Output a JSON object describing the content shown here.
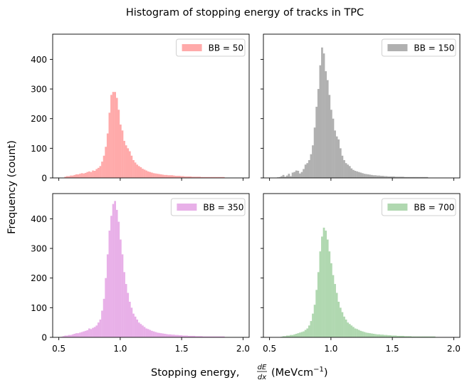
{
  "figure": {
    "suptitle": "Histogram of stopping energy of tracks in TPC",
    "ylabel": "Frequency (count)",
    "xlabel_prefix": "Stopping energy, ",
    "xlabel_frac_num": "dE",
    "xlabel_frac_den": "dx",
    "xlabel_units": "(MeVcm",
    "xlabel_units_sup": "−1",
    "xlabel_units_close": ")"
  },
  "chart_data": [
    {
      "type": "bar",
      "legend": "BB = 50",
      "color": "#ffaaaa",
      "bin_start": 0.5,
      "bin_width": 0.015,
      "xlim": [
        0.45,
        2.05
      ],
      "ylim": [
        0,
        485
      ],
      "xticks": [
        0.5,
        1.0,
        1.5,
        2.0
      ],
      "xtick_labels": [
        "0.5",
        "1.0",
        "1.5",
        "2.0"
      ],
      "yticks": [
        0,
        100,
        200,
        300,
        400
      ],
      "ytick_labels": [
        "0",
        "100",
        "200",
        "300",
        "400"
      ],
      "values": [
        0,
        0,
        0,
        4,
        6,
        6,
        8,
        8,
        10,
        12,
        12,
        14,
        16,
        15,
        17,
        20,
        22,
        20,
        25,
        24,
        30,
        34,
        40,
        55,
        75,
        105,
        150,
        220,
        280,
        290,
        290,
        270,
        230,
        180,
        160,
        125,
        110,
        100,
        90,
        75,
        60,
        52,
        45,
        40,
        36,
        31,
        28,
        25,
        22,
        20,
        18,
        16,
        15,
        14,
        13,
        12,
        11,
        10,
        10,
        9,
        9,
        9,
        8,
        7,
        7,
        7,
        6,
        6,
        5,
        5,
        5,
        5,
        4,
        4,
        4,
        4,
        4,
        3,
        3,
        3,
        3,
        3,
        3,
        3,
        3,
        3,
        3,
        3,
        3,
        3
      ]
    },
    {
      "type": "bar",
      "legend": "BB = 150",
      "color": "#b0b0b0",
      "bin_start": 0.5,
      "bin_width": 0.015,
      "xlim": [
        0.45,
        2.05
      ],
      "ylim": [
        0,
        485
      ],
      "xticks": [
        0.5,
        1.0,
        1.5,
        2.0
      ],
      "xtick_labels": [
        "0.5",
        "1.0",
        "1.5",
        "2.0"
      ],
      "yticks": [
        0,
        100,
        200,
        300,
        400
      ],
      "ytick_labels": [
        "0",
        "100",
        "200",
        "300",
        "400"
      ],
      "values": [
        0,
        0,
        0,
        0,
        2,
        3,
        6,
        10,
        4,
        8,
        14,
        6,
        18,
        20,
        25,
        24,
        15,
        20,
        30,
        45,
        50,
        60,
        80,
        110,
        170,
        240,
        300,
        380,
        440,
        420,
        360,
        330,
        280,
        230,
        200,
        160,
        140,
        130,
        100,
        75,
        60,
        50,
        45,
        40,
        32,
        27,
        24,
        22,
        20,
        18,
        16,
        14,
        13,
        12,
        11,
        10,
        9,
        9,
        8,
        8,
        7,
        7,
        6,
        6,
        5,
        5,
        5,
        5,
        4,
        4,
        4,
        4,
        4,
        3,
        3,
        3,
        3,
        3,
        3,
        3,
        3,
        3,
        3,
        3,
        3,
        3
      ]
    },
    {
      "type": "bar",
      "legend": "BB = 350",
      "color": "#e8b0e8",
      "bin_start": 0.5,
      "bin_width": 0.015,
      "xlim": [
        0.45,
        2.05
      ],
      "ylim": [
        0,
        485
      ],
      "xticks": [
        0.5,
        1.0,
        1.5,
        2.0
      ],
      "xtick_labels": [
        "0.5",
        "1.0",
        "1.5",
        "2.0"
      ],
      "yticks": [
        0,
        100,
        200,
        300,
        400
      ],
      "ytick_labels": [
        "0",
        "100",
        "200",
        "300",
        "400"
      ],
      "values": [
        0,
        2,
        4,
        6,
        6,
        8,
        8,
        10,
        12,
        14,
        14,
        16,
        18,
        20,
        22,
        24,
        30,
        28,
        32,
        35,
        40,
        50,
        60,
        90,
        130,
        200,
        280,
        360,
        410,
        450,
        460,
        430,
        390,
        330,
        280,
        220,
        180,
        150,
        120,
        100,
        80,
        70,
        60,
        50,
        45,
        40,
        35,
        30,
        28,
        25,
        22,
        20,
        18,
        16,
        15,
        14,
        13,
        12,
        11,
        10,
        10,
        9,
        9,
        8,
        8,
        7,
        7,
        6,
        6,
        6,
        5,
        5,
        5,
        5,
        4,
        4,
        4,
        4,
        3,
        3,
        3,
        3,
        3,
        3,
        3,
        3,
        3,
        3,
        3,
        3
      ]
    },
    {
      "type": "bar",
      "legend": "BB = 700",
      "color": "#b0d8b0",
      "bin_start": 0.5,
      "bin_width": 0.015,
      "xlim": [
        0.45,
        2.05
      ],
      "ylim": [
        0,
        485
      ],
      "xticks": [
        0.5,
        1.0,
        1.5,
        2.0
      ],
      "xtick_labels": [
        "0.5",
        "1.0",
        "1.5",
        "2.0"
      ],
      "yticks": [
        0,
        100,
        200,
        300,
        400
      ],
      "ytick_labels": [
        "0",
        "100",
        "200",
        "300",
        "400"
      ],
      "values": [
        0,
        0,
        0,
        0,
        0,
        0,
        2,
        4,
        4,
        6,
        6,
        8,
        8,
        10,
        12,
        14,
        16,
        18,
        20,
        25,
        30,
        40,
        55,
        80,
        110,
        160,
        220,
        290,
        340,
        370,
        360,
        330,
        290,
        250,
        210,
        180,
        150,
        120,
        100,
        85,
        70,
        60,
        50,
        45,
        40,
        35,
        30,
        28,
        25,
        22,
        20,
        18,
        16,
        15,
        14,
        13,
        12,
        11,
        10,
        10,
        9,
        9,
        8,
        8,
        7,
        7,
        6,
        6,
        6,
        5,
        5,
        5,
        5,
        4,
        4,
        4,
        4,
        3,
        3,
        3,
        3,
        3,
        3,
        3,
        3,
        3,
        3,
        3,
        3,
        3
      ]
    }
  ]
}
